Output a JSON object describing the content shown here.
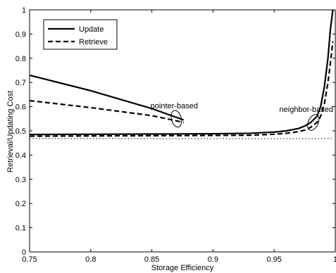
{
  "chart_data": {
    "type": "line",
    "title": "",
    "xlabel": "Storage Efficiency",
    "ylabel": "Retrieval/Updating Cost",
    "xlim": [
      0.75,
      1
    ],
    "ylim": [
      0,
      1
    ],
    "xticks": [
      0.75,
      0.8,
      0.85,
      0.9,
      0.95,
      1
    ],
    "xtick_labels": [
      "0.75",
      "0.8",
      "0.85",
      "0.9",
      "0.95",
      "1"
    ],
    "yticks": [
      0,
      0.1,
      0.2,
      0.3,
      0.4,
      0.5,
      0.6,
      0.7,
      0.8,
      0.9,
      1
    ],
    "ytick_labels": [
      "0",
      "0.1",
      "0.2",
      "0.3",
      "0.4",
      "0.5",
      "0.6",
      "0.7",
      "0.8",
      "0.9",
      "1"
    ],
    "grid": false,
    "legend_position": "top-left",
    "legend": [
      {
        "label": "Update",
        "style": "solid"
      },
      {
        "label": "Retrieve",
        "style": "dashed"
      }
    ],
    "series": [
      {
        "name": "Update",
        "group": "pointer-based",
        "style": "solid",
        "x": [
          0.75,
          0.8,
          0.85,
          0.876
        ],
        "y": [
          0.73,
          0.666,
          0.592,
          0.545
        ]
      },
      {
        "name": "Retrieve",
        "group": "pointer-based",
        "style": "dashed",
        "x": [
          0.75,
          0.8,
          0.85,
          0.876
        ],
        "y": [
          0.625,
          0.596,
          0.563,
          0.535
        ]
      },
      {
        "name": "Update",
        "group": "neighbor-based",
        "style": "solid",
        "x": [
          0.75,
          0.8,
          0.85,
          0.9,
          0.93,
          0.95,
          0.96,
          0.97,
          0.975,
          0.98,
          0.985,
          0.988,
          0.991,
          0.994,
          0.996,
          0.998
        ],
        "y": [
          0.485,
          0.486,
          0.487,
          0.488,
          0.49,
          0.495,
          0.5,
          0.51,
          0.52,
          0.535,
          0.56,
          0.6,
          0.68,
          0.8,
          0.92,
          1.0
        ]
      },
      {
        "name": "Retrieve",
        "group": "neighbor-based",
        "style": "dashed",
        "x": [
          0.75,
          0.8,
          0.85,
          0.9,
          0.93,
          0.95,
          0.96,
          0.97,
          0.975,
          0.98,
          0.985,
          0.988,
          0.991,
          0.994,
          0.996,
          0.998
        ],
        "y": [
          0.478,
          0.479,
          0.48,
          0.481,
          0.482,
          0.486,
          0.49,
          0.497,
          0.503,
          0.515,
          0.535,
          0.56,
          0.61,
          0.7,
          0.78,
          0.87
        ]
      },
      {
        "name": "",
        "group": "baseline",
        "style": "dotted",
        "x": [
          0.75,
          0.998
        ],
        "y": [
          0.468,
          0.468
        ]
      }
    ],
    "annotations": [
      {
        "text": "pointer-based",
        "x": 0.87,
        "y": 0.55
      },
      {
        "text": "neighbor-based",
        "x": 0.982,
        "y": 0.535
      }
    ]
  }
}
